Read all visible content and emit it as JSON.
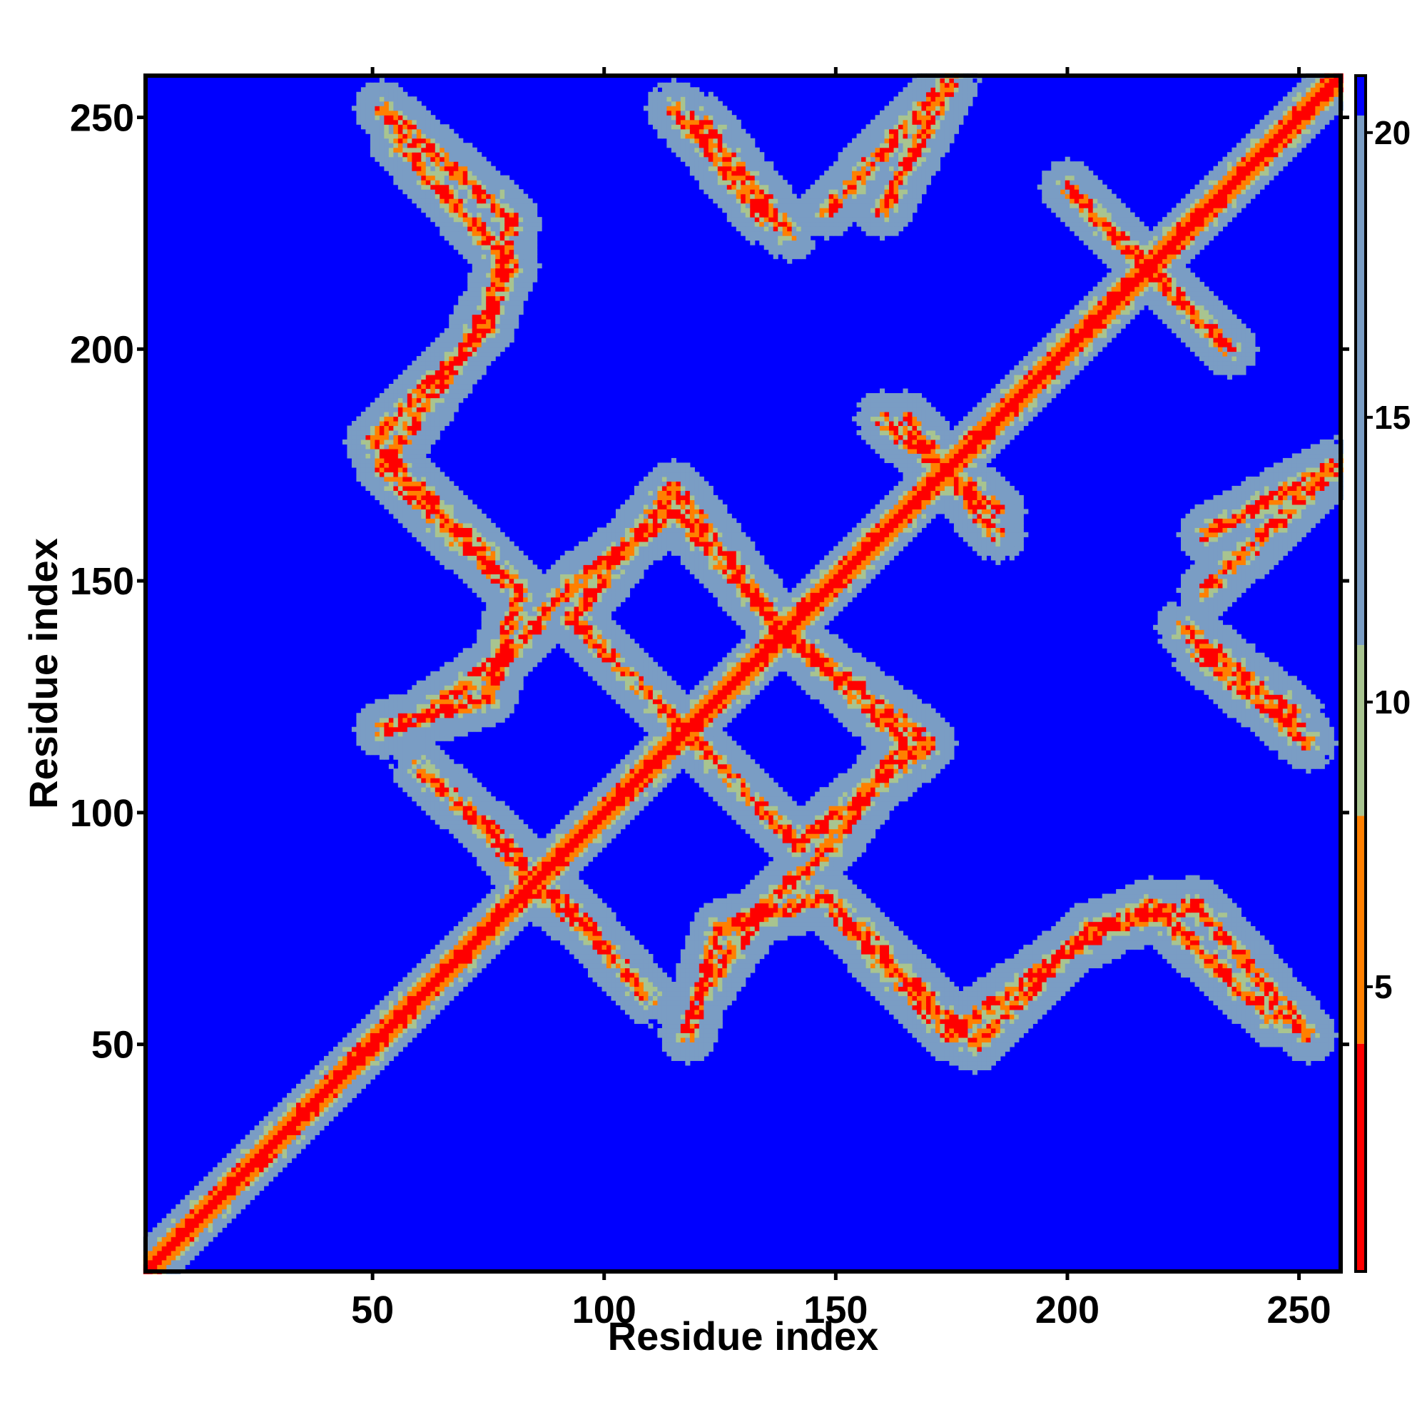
{
  "chart_data": {
    "type": "heatmap",
    "title": "",
    "xlabel": "Residue index",
    "ylabel": "Residue index",
    "xlim": [
      1,
      259
    ],
    "ylim": [
      1,
      259
    ],
    "x_ticks": [
      50,
      100,
      150,
      200,
      250
    ],
    "y_ticks": [
      50,
      100,
      150,
      200,
      250
    ],
    "grid": false,
    "matrix_size": 259,
    "colorbar": {
      "ticks": [
        5,
        10,
        15,
        20
      ],
      "range": [
        0,
        21
      ],
      "placement": "right",
      "colors": [
        {
          "from": 0,
          "to": 4,
          "color": "#ff0000"
        },
        {
          "from": 4,
          "to": 8,
          "color": "#ff8000"
        },
        {
          "from": 8,
          "to": 11,
          "color": "#a8c490"
        },
        {
          "from": 11,
          "to": 21,
          "color": "#7a9dc4"
        },
        {
          "from": 21,
          "to": 21,
          "color": "#0000ff"
        }
      ]
    },
    "background_value": 21,
    "diagonal": {
      "from": 1,
      "to": 259,
      "center_value": 1,
      "orange_halfwidth": 3,
      "green_halfwidth": 7
    },
    "contact_bands": [
      {
        "from": [
          52,
          252
        ],
        "to": [
          80,
          228
        ]
      },
      {
        "from": [
          80,
          228
        ],
        "to": [
          75,
          205
        ]
      },
      {
        "from": [
          75,
          205
        ],
        "to": [
          50,
          180
        ]
      },
      {
        "from": [
          50,
          180
        ],
        "to": [
          82,
          148
        ]
      },
      {
        "from": [
          82,
          148
        ],
        "to": [
          75,
          125
        ]
      },
      {
        "from": [
          75,
          125
        ],
        "to": [
          52,
          118
        ]
      },
      {
        "from": [
          60,
          110
        ],
        "to": [
          82,
          90
        ]
      },
      {
        "from": [
          93,
          142
        ],
        "to": [
          115,
          170
        ]
      },
      {
        "from": [
          115,
          170
        ],
        "to": [
          138,
          140
        ]
      },
      {
        "from": [
          93,
          142
        ],
        "to": [
          115,
          120
        ]
      },
      {
        "from": [
          138,
          140
        ],
        "to": [
          165,
          115
        ]
      },
      {
        "from": [
          165,
          115
        ],
        "to": [
          148,
          92
        ]
      },
      {
        "from": [
          148,
          92
        ],
        "to": [
          135,
          80
        ]
      },
      {
        "from": [
          135,
          80
        ],
        "to": [
          120,
          60
        ]
      },
      {
        "from": [
          86,
          83
        ],
        "to": [
          97,
          75
        ]
      },
      {
        "from": [
          150,
          78
        ],
        "to": [
          175,
          52
        ]
      },
      {
        "from": [
          175,
          52
        ],
        "to": [
          200,
          70
        ]
      },
      {
        "from": [
          200,
          70
        ],
        "to": [
          218,
          80
        ]
      },
      {
        "from": [
          218,
          80
        ],
        "to": [
          245,
          55
        ]
      },
      {
        "from": [
          115,
          252
        ],
        "to": [
          135,
          228
        ]
      },
      {
        "from": [
          148,
          230
        ],
        "to": [
          172,
          255
        ]
      },
      {
        "from": [
          200,
          235
        ],
        "to": [
          225,
          210
        ]
      },
      {
        "from": [
          160,
          185
        ],
        "to": [
          185,
          165
        ]
      },
      {
        "from": [
          225,
          140
        ],
        "to": [
          250,
          120
        ]
      },
      {
        "from": [
          230,
          160
        ],
        "to": [
          258,
          175
        ]
      }
    ]
  }
}
